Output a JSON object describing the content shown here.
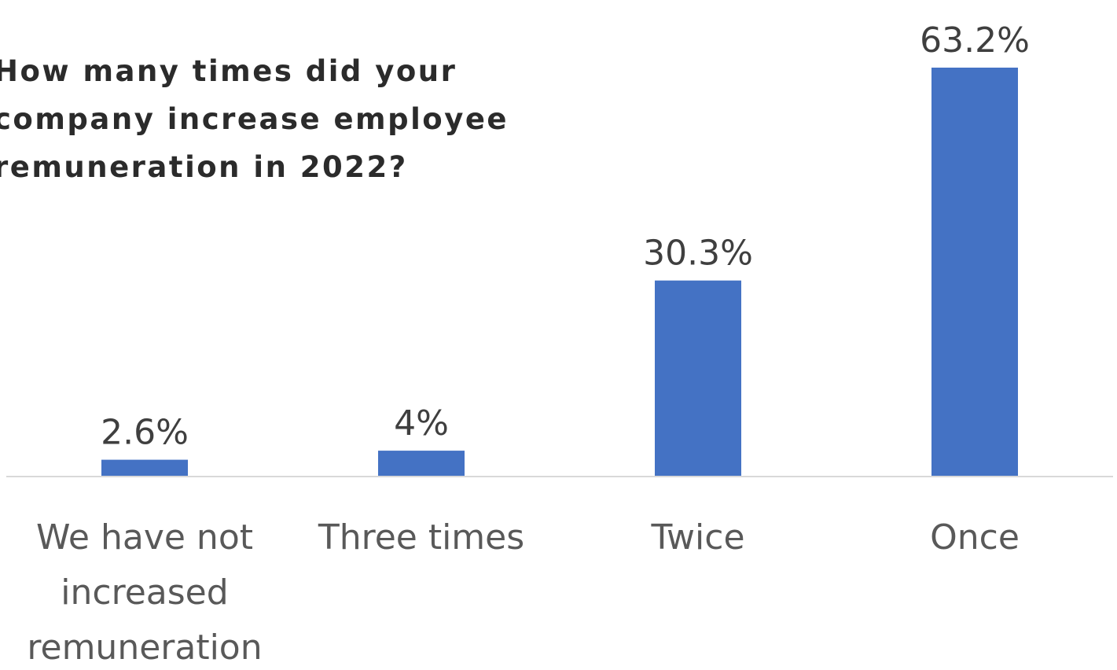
{
  "chart_data": {
    "type": "bar",
    "title_lines": [
      "How many times did your",
      "company increase employee",
      "remuneration in 2022?"
    ],
    "categories": [
      [
        "We have not",
        "increased",
        "remuneration"
      ],
      [
        "Three times"
      ],
      [
        "Twice"
      ],
      [
        "Once"
      ]
    ],
    "values": [
      2.6,
      4,
      30.3,
      63.2
    ],
    "data_labels": [
      "2.6%",
      "4%",
      "30.3%",
      "63.2%"
    ],
    "ylim": [
      0,
      63.2
    ],
    "grid": false,
    "legend": "none",
    "bar_color": "#4472c4",
    "axis_color": "#d9d9d9"
  }
}
